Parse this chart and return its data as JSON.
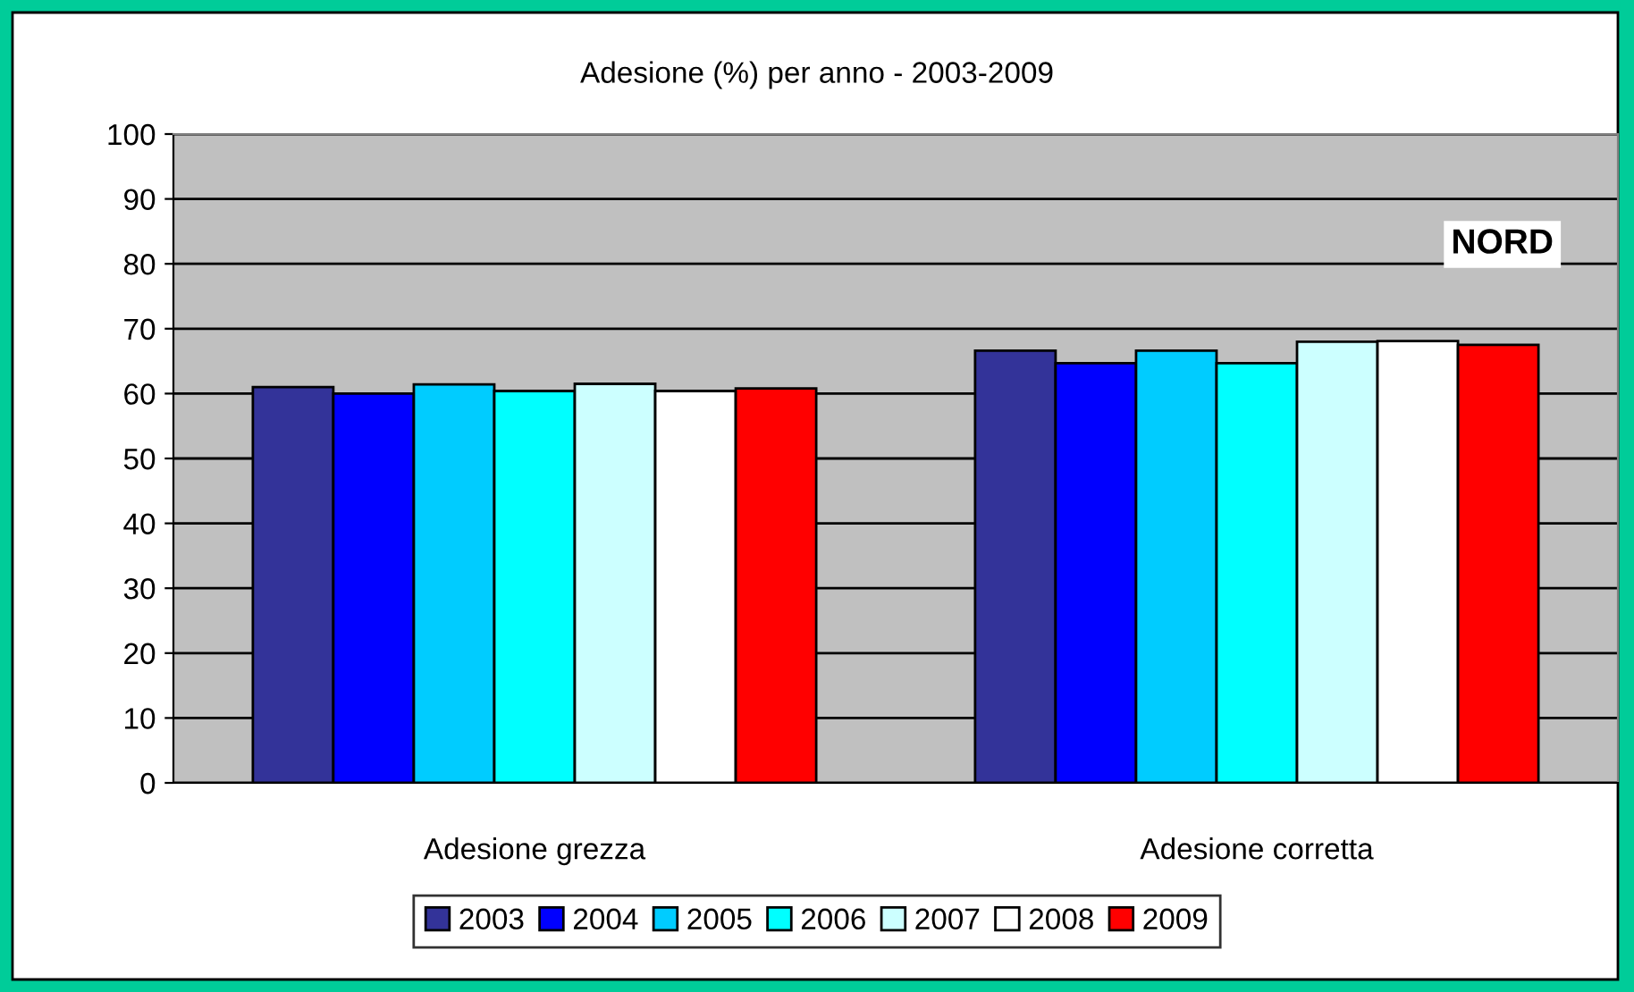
{
  "chart_data": {
    "type": "bar",
    "title": "Adesione (%) per anno - 2003-2009",
    "categories": [
      "Adesione grezza",
      "Adesione corretta"
    ],
    "series": [
      {
        "name": "2003",
        "color": "#333399",
        "values": [
          61.0,
          66.6
        ]
      },
      {
        "name": "2004",
        "color": "#0000ff",
        "values": [
          60.0,
          64.7
        ]
      },
      {
        "name": "2005",
        "color": "#00ccff",
        "values": [
          61.4,
          66.6
        ]
      },
      {
        "name": "2006",
        "color": "#00ffff",
        "values": [
          60.4,
          64.7
        ]
      },
      {
        "name": "2007",
        "color": "#ccffff",
        "values": [
          61.5,
          68.0
        ]
      },
      {
        "name": "2008",
        "color": "#ffffff",
        "values": [
          60.4,
          68.1
        ]
      },
      {
        "name": "2009",
        "color": "#ff0000",
        "values": [
          60.8,
          67.5
        ]
      }
    ],
    "ylim": [
      0,
      100
    ],
    "yticks": [
      0,
      10,
      20,
      30,
      40,
      50,
      60,
      70,
      80,
      90,
      100
    ],
    "grid": "y",
    "legend": "bottom",
    "annotations": [
      "NORD"
    ]
  }
}
